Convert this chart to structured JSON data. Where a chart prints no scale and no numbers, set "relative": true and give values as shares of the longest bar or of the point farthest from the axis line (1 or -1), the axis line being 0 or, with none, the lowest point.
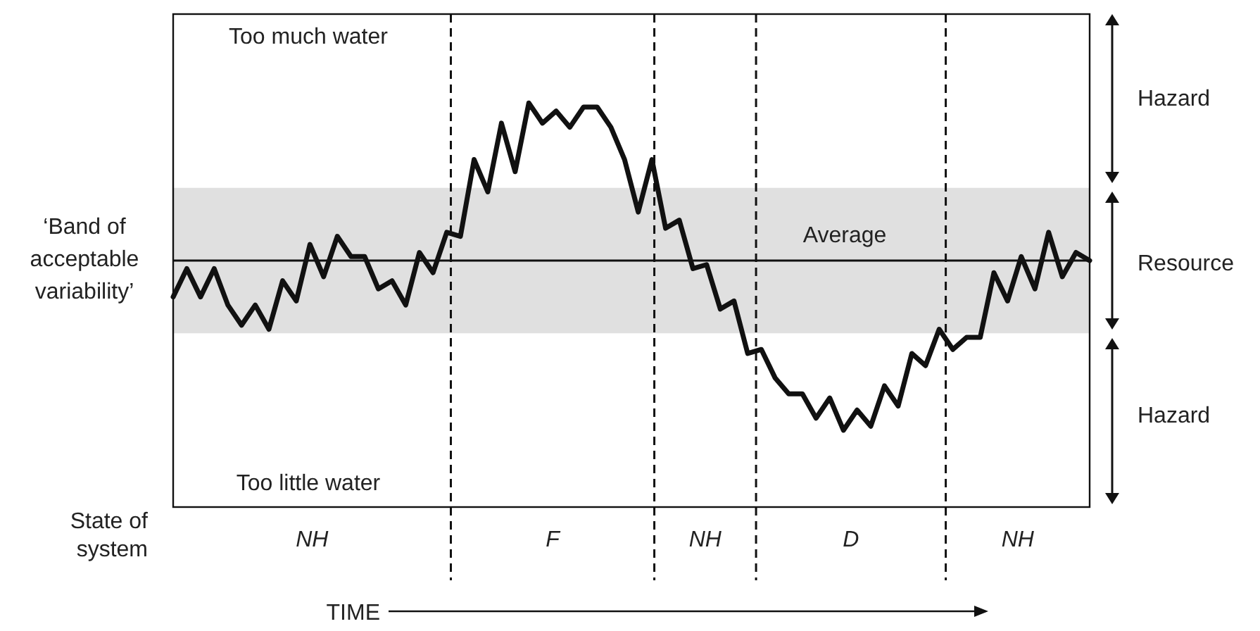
{
  "chart_data": {
    "type": "line",
    "relative": true,
    "xlabel": "TIME",
    "ylabel": "‘Band of acceptable variability’",
    "line_style": "solid",
    "categories": [
      null,
      null,
      null,
      null,
      null,
      null,
      null,
      null,
      null,
      null,
      null,
      null,
      null,
      null,
      null,
      null,
      null,
      null,
      null,
      null,
      null,
      null,
      null,
      null,
      null,
      null,
      null,
      null,
      null,
      null,
      null,
      null,
      null,
      null,
      null,
      null,
      null,
      null,
      null,
      null,
      null,
      null,
      null,
      null,
      null,
      null,
      null,
      null,
      null,
      null,
      null,
      null,
      null,
      null,
      null,
      null,
      null,
      null,
      null,
      null,
      null,
      null,
      null,
      null,
      null,
      null,
      null,
      null
    ],
    "series": [
      {
        "color": "#111111",
        "values": [
          0.52,
          0.59,
          0.52,
          0.59,
          0.5,
          0.45,
          0.5,
          0.44,
          0.56,
          0.51,
          0.65,
          0.57,
          0.67,
          0.62,
          0.62,
          0.54,
          0.56,
          0.5,
          0.63,
          0.58,
          0.68,
          0.67,
          0.86,
          0.78,
          0.95,
          0.83,
          1,
          0.95,
          0.98,
          0.94,
          0.99,
          0.99,
          0.94,
          0.86,
          0.73,
          0.86,
          0.69,
          0.71,
          0.59,
          0.6,
          0.49,
          0.51,
          0.38,
          0.39,
          0.32,
          0.28,
          0.28,
          0.22,
          0.27,
          0.19,
          0.24,
          0.2,
          0.3,
          0.25,
          0.38,
          0.35,
          0.44,
          0.39,
          0.42,
          0.42,
          0.58,
          0.51,
          0.62,
          0.54,
          0.68,
          0.57,
          0.63,
          0.61
        ]
      }
    ],
    "bands": [
      {
        "axis": "y",
        "from": 0.43,
        "to": 0.79,
        "color": "#e0e0e0"
      }
    ],
    "ref_lines": [
      {
        "axis": "y",
        "value": 0.61,
        "label": "Average",
        "color": "#111111",
        "line_style": "solid"
      }
    ],
    "annotations": [
      "Too much water",
      "Too little water",
      "NH",
      "F",
      "NH",
      "D",
      "NH",
      "Hazard",
      "Resource",
      "Hazard",
      "State of system"
    ]
  }
}
